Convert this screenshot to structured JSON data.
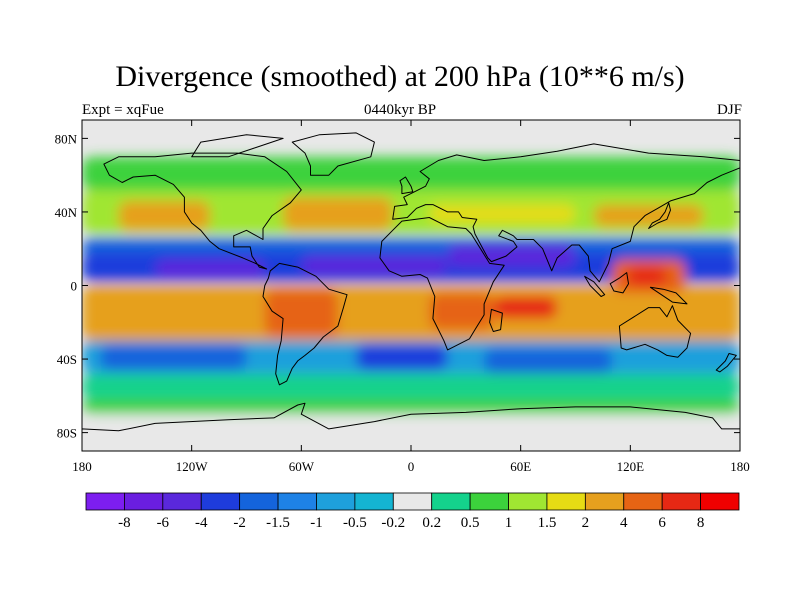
{
  "title": "Divergence (smoothed) at 200 hPa (10**6 m/s)",
  "experiment": "Expt = xqFue",
  "period": "0440kyr BP",
  "season": "DJF",
  "colors": {
    "ocean_background": "#e8e8e8",
    "coastline": "#000000",
    "palette": [
      "#7d1ef0",
      "#6a1ee0",
      "#5a28dc",
      "#1e3cdc",
      "#1464dc",
      "#1e82e6",
      "#1ea0dc",
      "#14b4d2",
      "#e8e8e8",
      "#14d28c",
      "#3cd23c",
      "#a0e632",
      "#e6dc14",
      "#e6a01e",
      "#e66414",
      "#e62814",
      "#f00000"
    ]
  },
  "chart_data": {
    "type": "heatmap",
    "variable": "Divergence (smoothed)",
    "level": "200 hPa",
    "units": "10**6 m/s",
    "projection": "cylindrical equidistant",
    "xlim": [
      -180,
      180
    ],
    "ylim": [
      -90,
      90
    ],
    "x_ticks": [
      -180,
      -120,
      -60,
      0,
      60,
      120,
      180
    ],
    "x_tick_labels": [
      "180",
      "120W",
      "60W",
      "0",
      "60E",
      "120E",
      "180"
    ],
    "y_ticks": [
      80,
      40,
      0,
      -40,
      -80
    ],
    "y_tick_labels": [
      "80N",
      "40N",
      "0",
      "40S",
      "80S"
    ],
    "colorbar": {
      "levels": [
        -8,
        -6,
        -4,
        -2,
        -1.5,
        -1,
        -0.5,
        -0.2,
        0.2,
        0.5,
        1,
        1.5,
        2,
        4,
        6,
        8
      ],
      "labels": [
        "-8",
        "-6",
        "-4",
        "-2",
        "-1.5",
        "-1",
        "-0.5",
        "-0.2",
        "0.2",
        "0.5",
        "1",
        "1.5",
        "2",
        "4",
        "6",
        "8"
      ]
    },
    "features": [
      {
        "name": "tropical-convergence-band",
        "lat": [
          -5,
          25
        ],
        "lon": [
          -180,
          180
        ],
        "value_range": [
          -4,
          -1.5
        ]
      },
      {
        "name": "tropical-divergence-band",
        "lat": [
          -30,
          0
        ],
        "lon": [
          -180,
          180
        ],
        "value_range": [
          2,
          8
        ]
      },
      {
        "name": "maritime-continent-maximum",
        "lat": 5,
        "lon": 125,
        "value": 6
      },
      {
        "name": "indian-ocean-maximum",
        "lat": -10,
        "lon": 60,
        "value": 6
      },
      {
        "name": "africa-maximum",
        "lat": -10,
        "lon": 30,
        "value": 4
      },
      {
        "name": "south-america-maximum",
        "lat": -12,
        "lon": -60,
        "value": 4
      },
      {
        "name": "midlatitude-nh-divergence",
        "lat": [
          30,
          50
        ],
        "lon": [
          -180,
          180
        ],
        "value_range": [
          1,
          4
        ]
      },
      {
        "name": "midlatitude-sh-convergence",
        "lat": [
          -50,
          -30
        ],
        "lon": [
          -180,
          180
        ],
        "value_range": [
          -2,
          -0.5
        ]
      },
      {
        "name": "polar-near-zero",
        "lat": [
          -90,
          -65
        ],
        "lon": [
          -180,
          180
        ],
        "value_range": [
          -0.2,
          0.2
        ]
      }
    ]
  }
}
